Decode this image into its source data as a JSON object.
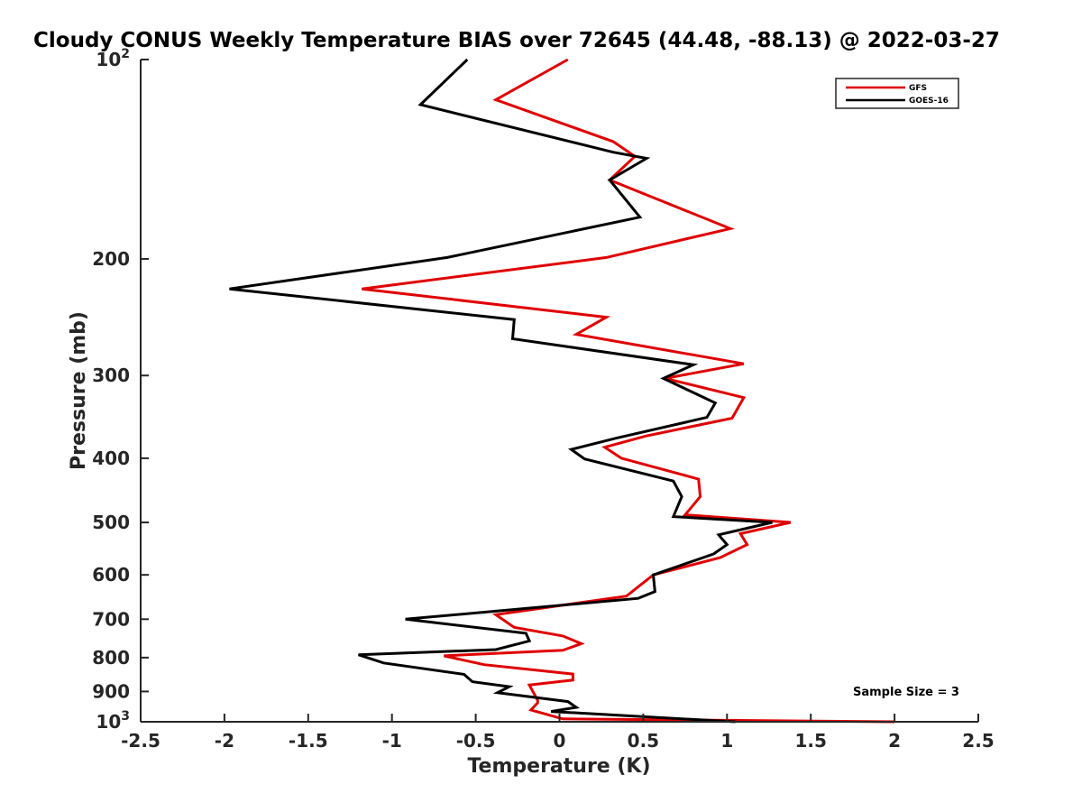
{
  "chart_data": {
    "type": "line",
    "title": "Cloudy CONUS Weekly Temperature BIAS over 72645 (44.48, -88.13) @ 2022-03-27",
    "xlabel": "Temperature (K)",
    "ylabel": "Pressure (mb)",
    "xlim": [
      -2.5,
      2.5
    ],
    "ylim": [
      100,
      1000
    ],
    "y_scale": "log",
    "y_reversed": true,
    "grid": false,
    "legend_position": "top-right",
    "x_ticks": [
      "-2.5",
      "-2",
      "-1.5",
      "-1",
      "-0.5",
      "0",
      "0.5",
      "1",
      "1.5",
      "2",
      "2.5"
    ],
    "y_ticks": [
      {
        "value": 100,
        "label": "10",
        "sup": "2"
      },
      {
        "value": 200,
        "label": "200",
        "sup": ""
      },
      {
        "value": 300,
        "label": "300",
        "sup": ""
      },
      {
        "value": 400,
        "label": "400",
        "sup": ""
      },
      {
        "value": 500,
        "label": "500",
        "sup": ""
      },
      {
        "value": 600,
        "label": "600",
        "sup": ""
      },
      {
        "value": 700,
        "label": "700",
        "sup": ""
      },
      {
        "value": 800,
        "label": "800",
        "sup": ""
      },
      {
        "value": 900,
        "label": "900",
        "sup": ""
      },
      {
        "value": 1000,
        "label": "10",
        "sup": "3"
      }
    ],
    "annotation": "Sample Size = 3",
    "series": [
      {
        "name": "GFS",
        "color": "#e00000",
        "points": [
          [
            0.05,
            100
          ],
          [
            -0.38,
            115
          ],
          [
            0.32,
            133
          ],
          [
            0.45,
            140
          ],
          [
            0.3,
            152
          ],
          [
            1.02,
            180
          ],
          [
            0.28,
            199
          ],
          [
            -1.18,
            222
          ],
          [
            0.28,
            245
          ],
          [
            0.1,
            260
          ],
          [
            1.1,
            288
          ],
          [
            0.63,
            303
          ],
          [
            1.1,
            324
          ],
          [
            1.03,
            348
          ],
          [
            0.52,
            370
          ],
          [
            0.27,
            385
          ],
          [
            0.37,
            400
          ],
          [
            0.83,
            430
          ],
          [
            0.84,
            457
          ],
          [
            0.75,
            487
          ],
          [
            1.38,
            500
          ],
          [
            1.08,
            520
          ],
          [
            1.12,
            540
          ],
          [
            0.96,
            565
          ],
          [
            0.56,
            600
          ],
          [
            0.4,
            646
          ],
          [
            -0.38,
            689
          ],
          [
            -0.27,
            720
          ],
          [
            0.02,
            742
          ],
          [
            0.13,
            762
          ],
          [
            0.02,
            780
          ],
          [
            -0.69,
            795
          ],
          [
            -0.45,
            820
          ],
          [
            0.08,
            847
          ],
          [
            0.08,
            865
          ],
          [
            -0.18,
            880
          ],
          [
            -0.13,
            928
          ],
          [
            -0.13,
            936
          ],
          [
            -0.17,
            960
          ],
          [
            0.02,
            990
          ],
          [
            2.0,
            1000
          ]
        ]
      },
      {
        "name": "GOES-16",
        "color": "#000000",
        "points": [
          [
            -0.55,
            100
          ],
          [
            -0.83,
            117
          ],
          [
            0.32,
            138
          ],
          [
            0.52,
            141
          ],
          [
            0.3,
            152
          ],
          [
            0.48,
            173
          ],
          [
            -0.67,
            199
          ],
          [
            -1.97,
            222
          ],
          [
            -0.27,
            247
          ],
          [
            -0.28,
            264
          ],
          [
            0.8,
            289
          ],
          [
            0.62,
            303
          ],
          [
            0.93,
            330
          ],
          [
            0.88,
            347
          ],
          [
            0.34,
            373
          ],
          [
            0.07,
            388
          ],
          [
            0.15,
            401
          ],
          [
            0.68,
            433
          ],
          [
            0.73,
            457
          ],
          [
            0.68,
            490
          ],
          [
            1.27,
            500
          ],
          [
            0.95,
            522
          ],
          [
            1.0,
            540
          ],
          [
            0.92,
            558
          ],
          [
            0.56,
            600
          ],
          [
            0.57,
            636
          ],
          [
            0.47,
            651
          ],
          [
            -0.92,
            700
          ],
          [
            -0.2,
            735
          ],
          [
            -0.18,
            755
          ],
          [
            -0.38,
            778
          ],
          [
            -1.2,
            792
          ],
          [
            -1.05,
            815
          ],
          [
            -0.57,
            848
          ],
          [
            -0.52,
            870
          ],
          [
            -0.3,
            885
          ],
          [
            -0.37,
            904
          ],
          [
            0.05,
            932
          ],
          [
            0.1,
            951
          ],
          [
            -0.05,
            965
          ],
          [
            1.05,
            1000
          ]
        ]
      }
    ]
  }
}
